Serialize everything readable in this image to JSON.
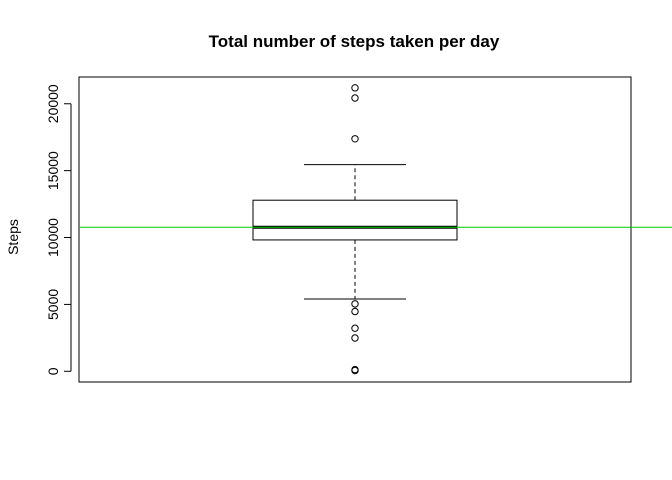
{
  "chart_data": {
    "type": "box",
    "title": "Total number of steps taken per day",
    "xlabel": "",
    "ylabel": "Steps",
    "ylim": [
      -800,
      22000
    ],
    "yticks": [
      0,
      5000,
      10000,
      15000,
      20000
    ],
    "yticklabels": [
      "0",
      "5000",
      "10000",
      "15000",
      "20000"
    ],
    "box": {
      "min": 5400,
      "q1": 9820,
      "median": 10770,
      "q3": 12790,
      "max": 15450,
      "outliers": [
        21190,
        20430,
        17380,
        5040,
        4470,
        3220,
        2490,
        130,
        60
      ]
    },
    "reference_line": {
      "y": 10766,
      "color": "#00cc00"
    },
    "grid": false,
    "legend": "none"
  }
}
